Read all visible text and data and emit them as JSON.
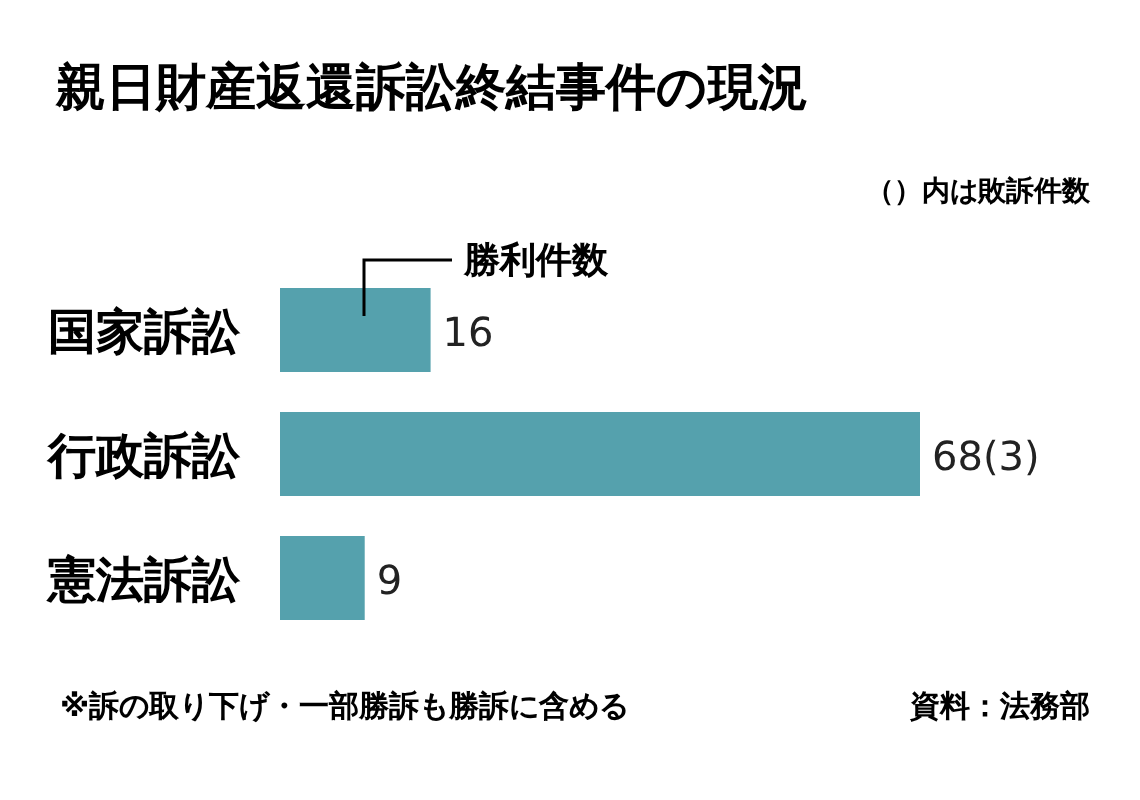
{
  "chart_data": {
    "type": "bar",
    "orientation": "horizontal",
    "title": "親日財産返還訴訟終結事件の現況",
    "categories": [
      "国家訴訟",
      "行政訴訟",
      "憲法訴訟"
    ],
    "values": [
      16,
      68,
      9
    ],
    "value_labels": [
      "16",
      "68(3)",
      "9"
    ],
    "color": "#55a1ad",
    "annotations": [
      "（）内は敗訴件数",
      "勝利件数",
      "※訴の取り下げ・一部勝訴も勝訴に含める",
      "資料：法務部"
    ]
  }
}
